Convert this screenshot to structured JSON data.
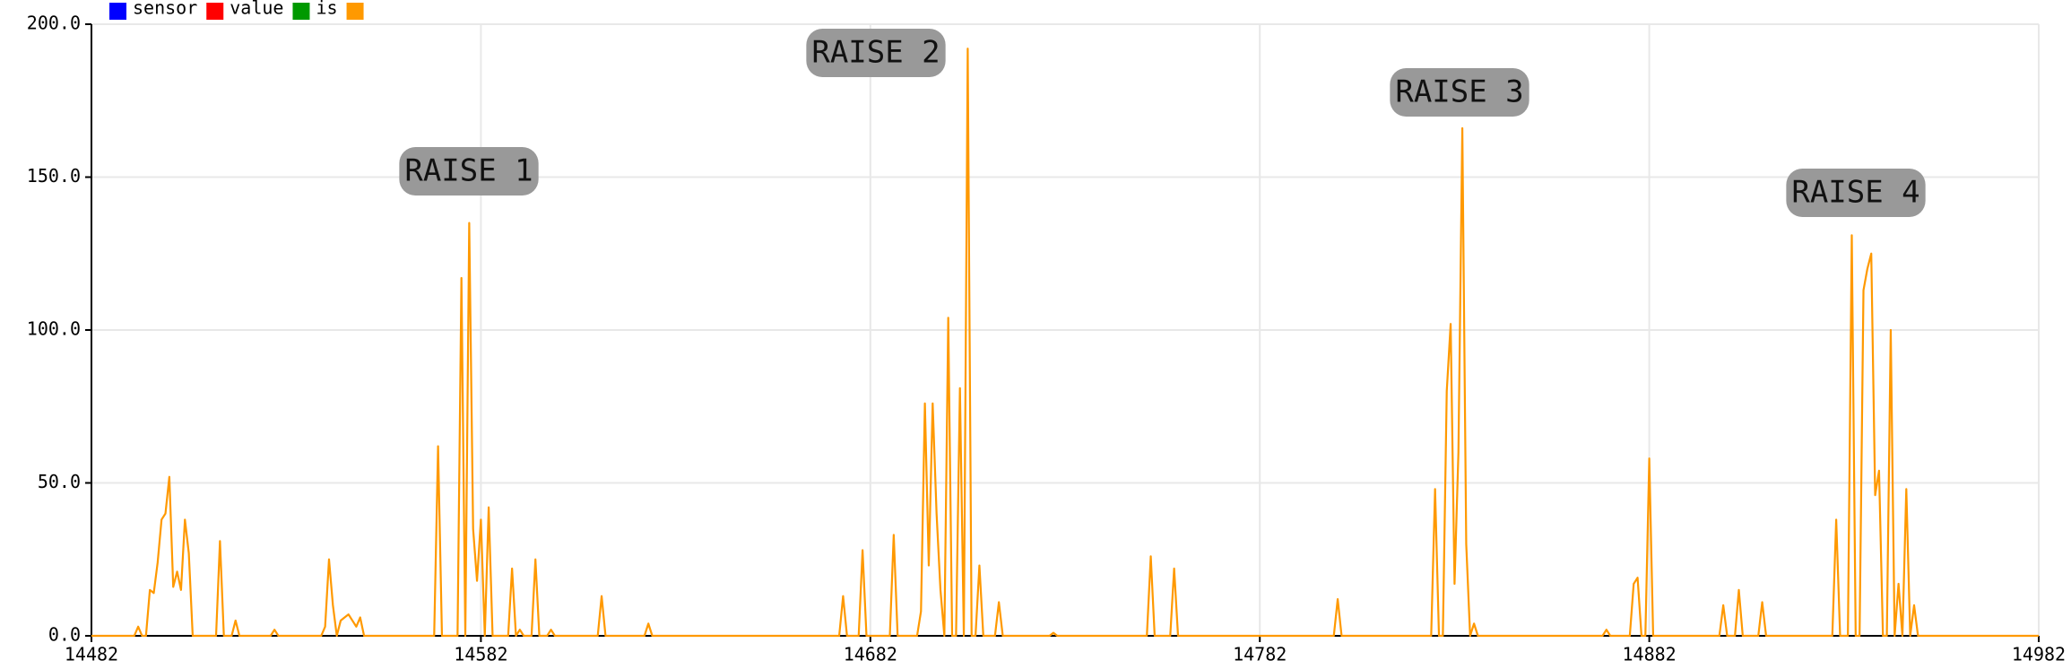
{
  "chart_data": {
    "type": "line",
    "legend": [
      {
        "name": "sensor",
        "color": "#0000ff"
      },
      {
        "name": "value",
        "color": "#ff0000"
      },
      {
        "name": "is",
        "color": "#009900"
      },
      {
        "color": "#ff9900"
      }
    ],
    "annotations": [
      "RAISE 1",
      "RAISE 2",
      "RAISE 3",
      "RAISE 4"
    ],
    "grid": true,
    "xlim": [
      14482,
      14982
    ],
    "xticks": [
      14482,
      14582,
      14682,
      14782,
      14882,
      14982
    ],
    "ylim": [
      0,
      200
    ],
    "yticks": [
      {
        "value": 0,
        "label": "0.0"
      },
      {
        "value": 50,
        "label": "50.0"
      },
      {
        "value": 100,
        "label": "100.0"
      },
      {
        "value": 150,
        "label": "150.0"
      },
      {
        "value": 200,
        "label": "200.0"
      }
    ],
    "x": [
      14482,
      14493,
      14494,
      14495,
      14496,
      14497,
      14498,
      14499,
      14500,
      14501,
      14502,
      14503,
      14504,
      14505,
      14506,
      14507,
      14508,
      14514,
      14515,
      14516,
      14518,
      14519,
      14520,
      14528,
      14529,
      14530,
      14541,
      14542,
      14543,
      14544,
      14545,
      14546,
      14547,
      14548,
      14549,
      14550,
      14551,
      14552,
      14570,
      14571,
      14572,
      14576,
      14577,
      14578,
      14579,
      14580,
      14581,
      14582,
      14583,
      14584,
      14585,
      14589,
      14590,
      14591,
      14592,
      14593,
      14595,
      14596,
      14597,
      14599,
      14600,
      14601,
      14612,
      14613,
      14614,
      14624,
      14625,
      14626,
      14674,
      14675,
      14676,
      14679,
      14680,
      14681,
      14687,
      14688,
      14689,
      14694,
      14695,
      14696,
      14697,
      14698,
      14699,
      14700,
      14701,
      14702,
      14703,
      14704,
      14705,
      14706,
      14707,
      14708,
      14709,
      14710,
      14711,
      14714,
      14715,
      14716,
      14728,
      14729,
      14730,
      14753,
      14754,
      14755,
      14759,
      14760,
      14761,
      14801,
      14802,
      14803,
      14826,
      14827,
      14828,
      14829,
      14830,
      14831,
      14832,
      14833,
      14834,
      14835,
      14836,
      14837,
      14838,
      14870,
      14871,
      14872,
      14877,
      14878,
      14879,
      14880,
      14881,
      14882,
      14883,
      14900,
      14901,
      14902,
      14904,
      14905,
      14906,
      14910,
      14911,
      14912,
      14929,
      14930,
      14931,
      14933,
      14934,
      14935,
      14936,
      14937,
      14938,
      14939,
      14940,
      14941,
      14942,
      14943,
      14944,
      14945,
      14946,
      14947,
      14948,
      14949,
      14950,
      14951,
      14982
    ],
    "series": [
      {
        "color": "#ff9900",
        "values": [
          0,
          0,
          3,
          0,
          0,
          15,
          14,
          24,
          38,
          40,
          52,
          16,
          21,
          15,
          38,
          27,
          0,
          0,
          31,
          0,
          0,
          5,
          0,
          0,
          2,
          0,
          0,
          3,
          25,
          10,
          0,
          5,
          6,
          7,
          5,
          3,
          6,
          0,
          0,
          62,
          0,
          0,
          117,
          0,
          135,
          35,
          18,
          38,
          0,
          42,
          0,
          0,
          22,
          0,
          2,
          0,
          0,
          25,
          0,
          0,
          2,
          0,
          0,
          13,
          0,
          0,
          4,
          0,
          0,
          13,
          0,
          0,
          28,
          0,
          0,
          33,
          0,
          0,
          8,
          76,
          23,
          76,
          40,
          15,
          0,
          104,
          0,
          0,
          81,
          0,
          192,
          0,
          0,
          23,
          0,
          0,
          11,
          0,
          0,
          1,
          0,
          0,
          26,
          0,
          0,
          22,
          0,
          0,
          12,
          0,
          0,
          48,
          0,
          0,
          80,
          102,
          17,
          60,
          166,
          30,
          0,
          4,
          0,
          0,
          2,
          0,
          0,
          17,
          19,
          0,
          0,
          58,
          0,
          0,
          10,
          0,
          0,
          15,
          0,
          0,
          11,
          0,
          0,
          38,
          0,
          0,
          131,
          0,
          0,
          113,
          120,
          125,
          46,
          54,
          0,
          0,
          100,
          0,
          17,
          0,
          48,
          0,
          10,
          0,
          0
        ]
      }
    ]
  }
}
